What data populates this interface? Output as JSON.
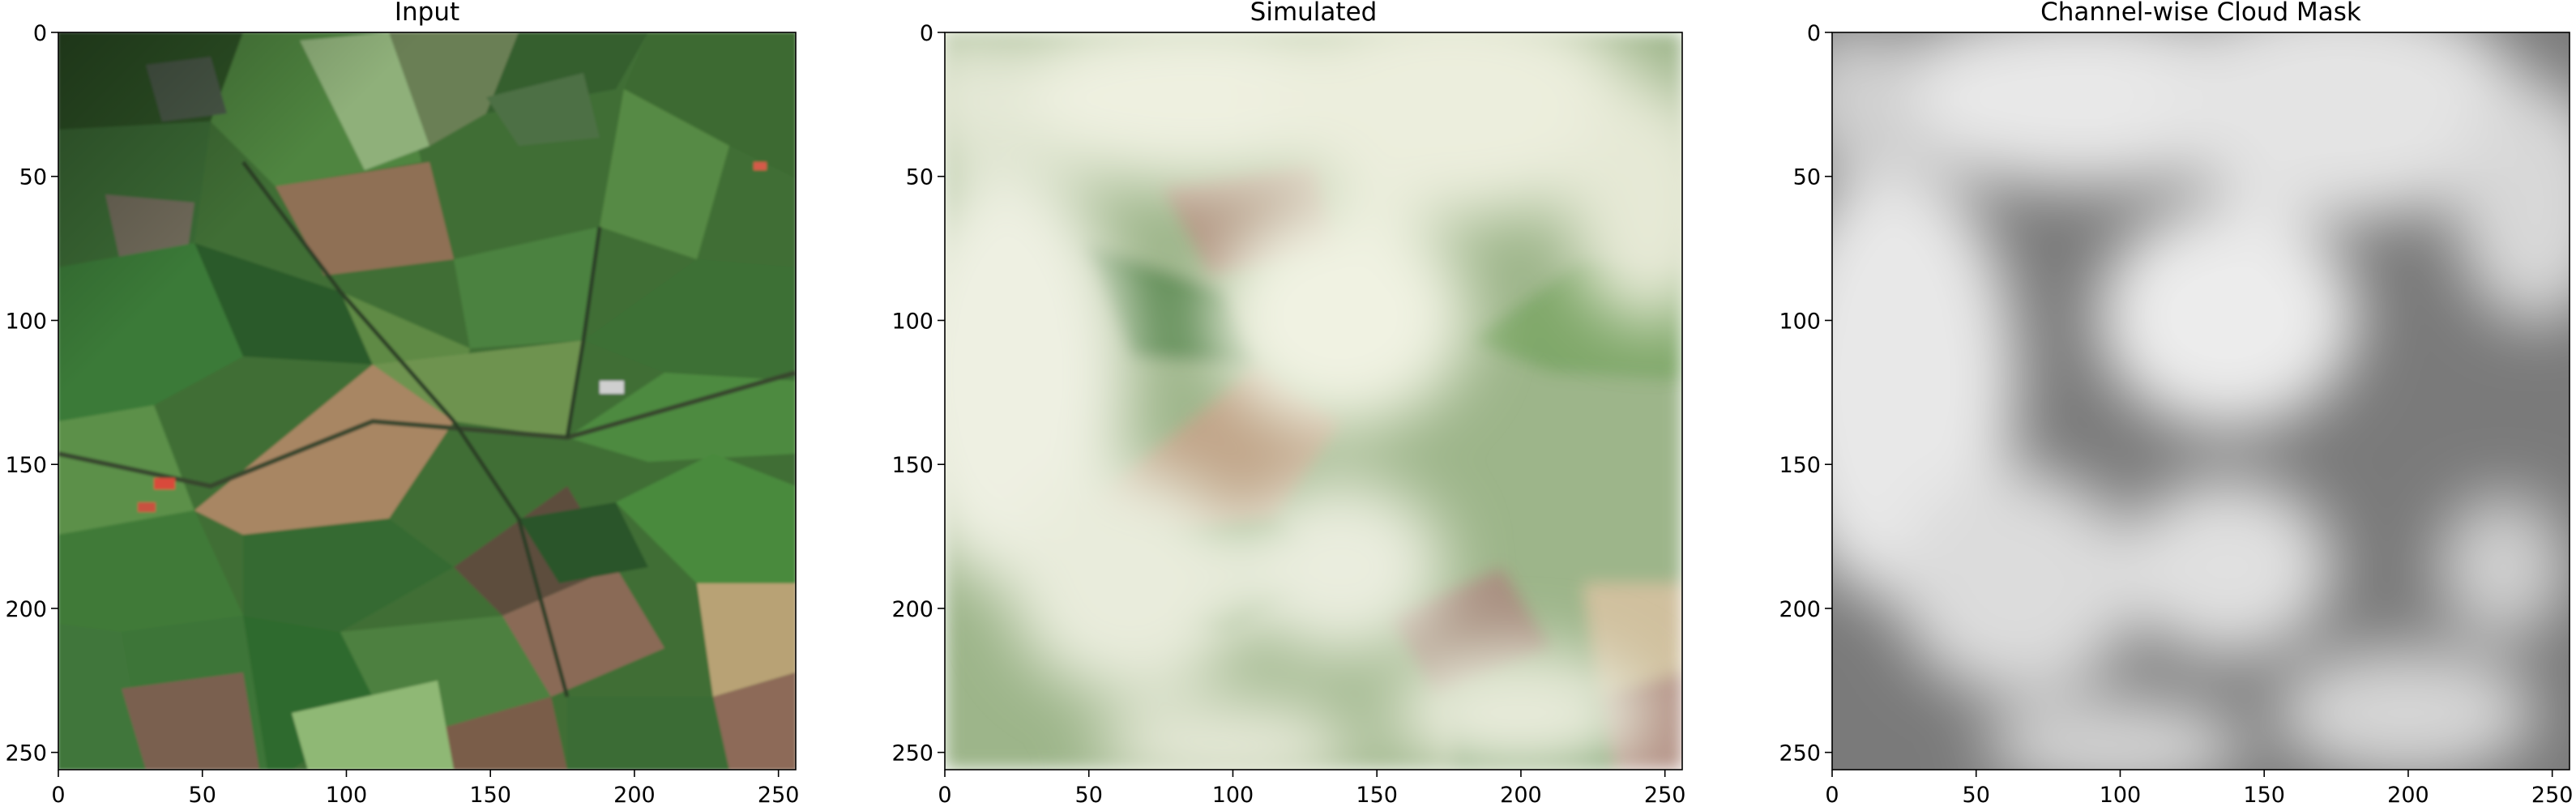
{
  "chart_data": [
    {
      "type": "heatmap",
      "title": "Input",
      "xlim": [
        0,
        256
      ],
      "ylim": [
        256,
        0
      ],
      "x_ticks": [
        0,
        50,
        100,
        150,
        200,
        250
      ],
      "y_ticks": [
        0,
        50,
        100,
        150,
        200,
        250
      ],
      "image": "rgb satellite image of green and brown agricultural fields"
    },
    {
      "type": "heatmap",
      "title": "Simulated",
      "xlim": [
        0,
        256
      ],
      "ylim": [
        256,
        0
      ],
      "x_ticks": [
        0,
        50,
        100,
        150,
        200,
        250
      ],
      "y_ticks": [
        0,
        50,
        100,
        150,
        200,
        250
      ],
      "image": "input fields blended with a translucent white cloud layer"
    },
    {
      "type": "heatmap",
      "title": "Channel-wise Cloud Mask",
      "xlim": [
        0,
        256
      ],
      "ylim": [
        256,
        0
      ],
      "x_ticks": [
        0,
        50,
        100,
        150,
        200,
        250
      ],
      "y_ticks": [
        0,
        50,
        100,
        150,
        200,
        250
      ],
      "image": "grayscale cloud mask, light grey clouds on dark grey background"
    }
  ],
  "colors": {
    "field_dark": "#2f5a2a",
    "field_mid": "#4b7f3e",
    "field_light": "#79a35e",
    "field_brown": "#8a6a52",
    "field_tan": "#b99d78",
    "cloud_white": "#eef0e2",
    "mask_light": "#e8e8e8",
    "mask_dark": "#707070"
  }
}
